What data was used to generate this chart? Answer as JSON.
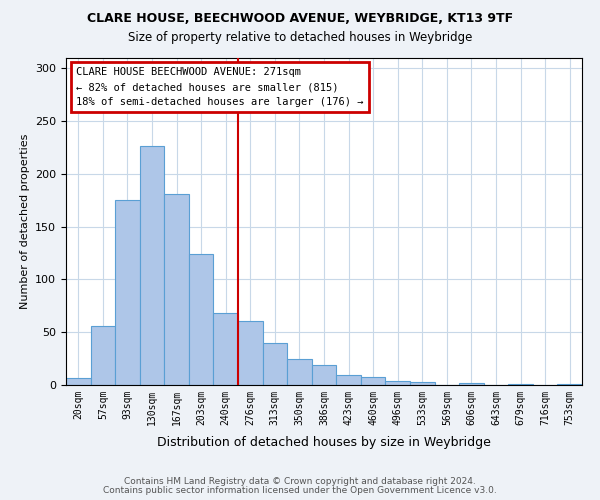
{
  "title": "CLARE HOUSE, BEECHWOOD AVENUE, WEYBRIDGE, KT13 9TF",
  "subtitle": "Size of property relative to detached houses in Weybridge",
  "xlabel": "Distribution of detached houses by size in Weybridge",
  "ylabel": "Number of detached properties",
  "bar_values": [
    7,
    56,
    175,
    226,
    181,
    124,
    68,
    61,
    40,
    25,
    19,
    9,
    8,
    4,
    3,
    0,
    2,
    0,
    1,
    0,
    1
  ],
  "bar_labels": [
    "20sqm",
    "57sqm",
    "93sqm",
    "130sqm",
    "167sqm",
    "203sqm",
    "240sqm",
    "276sqm",
    "313sqm",
    "350sqm",
    "386sqm",
    "423sqm",
    "460sqm",
    "496sqm",
    "533sqm",
    "569sqm",
    "606sqm",
    "643sqm",
    "679sqm",
    "716sqm",
    "753sqm"
  ],
  "bar_color": "#aec6e8",
  "bar_edge_color": "#5a9fd4",
  "vline_pos": 6.5,
  "vline_color": "#cc0000",
  "annotation_lines": [
    "CLARE HOUSE BEECHWOOD AVENUE: 271sqm",
    "← 82% of detached houses are smaller (815)",
    "18% of semi-detached houses are larger (176) →"
  ],
  "annotation_box_color": "#cc0000",
  "ylim": [
    0,
    310
  ],
  "yticks": [
    0,
    50,
    100,
    150,
    200,
    250,
    300
  ],
  "footer1": "Contains HM Land Registry data © Crown copyright and database right 2024.",
  "footer2": "Contains public sector information licensed under the Open Government Licence v3.0.",
  "bg_color": "#eef2f7",
  "plot_bg_color": "#ffffff",
  "grid_color": "#c8d8e8"
}
